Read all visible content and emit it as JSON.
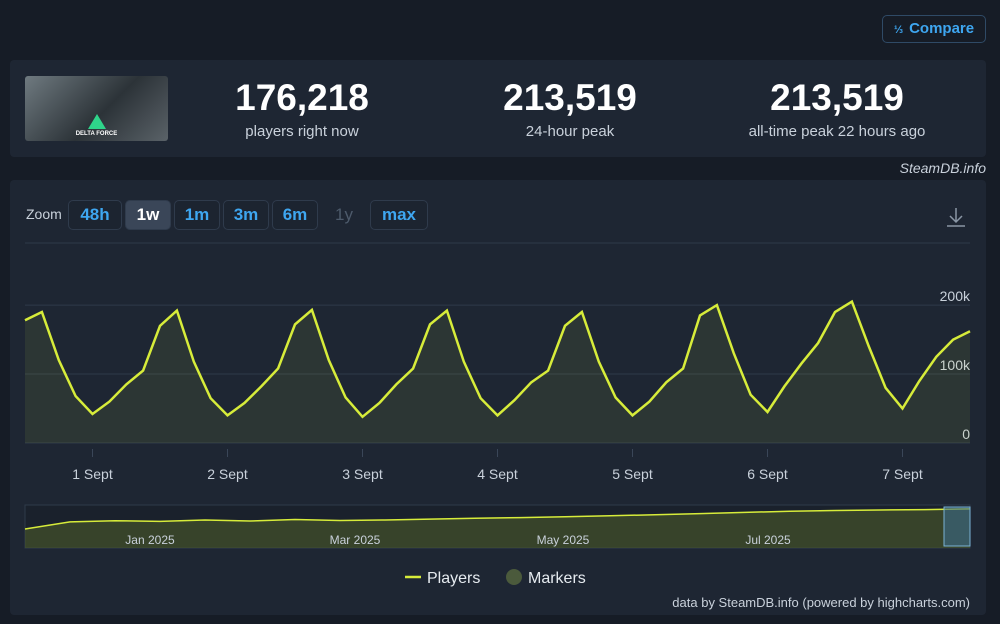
{
  "compare_button": "Compare",
  "game_image_text": "DELTA FORCE",
  "stats": [
    {
      "value": "176,218",
      "label": "players right now"
    },
    {
      "value": "213,519",
      "label": "24-hour peak"
    },
    {
      "value": "213,519",
      "label": "all-time peak 22 hours ago"
    }
  ],
  "source": "SteamDB.info",
  "zoom": {
    "label": "Zoom",
    "buttons": [
      "48h",
      "1w",
      "1m",
      "3m",
      "6m",
      "1y",
      "max"
    ],
    "active": 1,
    "disabled": [
      5
    ]
  },
  "chart_data": {
    "type": "line",
    "x": [
      0.5,
      0.625,
      0.75,
      0.875,
      1,
      1.125,
      1.25,
      1.375,
      1.5,
      1.625,
      1.75,
      1.875,
      2,
      2.125,
      2.25,
      2.375,
      2.5,
      2.625,
      2.75,
      2.875,
      3,
      3.125,
      3.25,
      3.375,
      3.5,
      3.625,
      3.75,
      3.875,
      4,
      4.125,
      4.25,
      4.375,
      4.5,
      4.625,
      4.75,
      4.875,
      5,
      5.125,
      5.25,
      5.375,
      5.5,
      5.625,
      5.75,
      5.875,
      6,
      6.125,
      6.25,
      6.375,
      6.5,
      6.625,
      6.75,
      6.875,
      7,
      7.125,
      7.25,
      7.375,
      7.5
    ],
    "series": [
      {
        "name": "Players",
        "color": "#d7ec3a",
        "values": [
          178000,
          190000,
          120000,
          68000,
          42000,
          60000,
          85000,
          105000,
          170000,
          192000,
          118000,
          65000,
          40000,
          58000,
          82000,
          108000,
          172000,
          193000,
          120000,
          66000,
          38000,
          58000,
          85000,
          108000,
          172000,
          192000,
          118000,
          65000,
          40000,
          62000,
          88000,
          105000,
          170000,
          190000,
          118000,
          66000,
          40000,
          60000,
          88000,
          108000,
          185000,
          200000,
          130000,
          70000,
          45000,
          82000,
          115000,
          145000,
          190000,
          205000,
          140000,
          80000,
          50000,
          90000,
          125000,
          150000,
          162000
        ]
      }
    ],
    "xlim": [
      0.5,
      7.5
    ],
    "xticks": [
      {
        "value": 1,
        "label": "1 Sept"
      },
      {
        "value": 2,
        "label": "2 Sept"
      },
      {
        "value": 3,
        "label": "3 Sept"
      },
      {
        "value": 4,
        "label": "4 Sept"
      },
      {
        "value": 5,
        "label": "5 Sept"
      },
      {
        "value": 6,
        "label": "6 Sept"
      },
      {
        "value": 7,
        "label": "7 Sept"
      }
    ],
    "ylim": [
      0,
      290000
    ],
    "yticks": [
      0,
      {
        "value": 100000,
        "label": "100k"
      },
      {
        "value": 200000,
        "label": "200k"
      }
    ],
    "grid": true,
    "markers_legend": {
      "name": "Markers",
      "color": "#4b5a3c"
    }
  },
  "navigator": {
    "labels": [
      "Jan 2025",
      "Mar 2025",
      "May 2025",
      "Jul 2025"
    ],
    "values": [
      80000,
      110000,
      115000,
      112000,
      118000,
      114000,
      120000,
      116000,
      118000,
      122000,
      125000,
      128000,
      132000,
      136000,
      140000,
      145000,
      150000,
      155000,
      158000,
      160000,
      162000,
      165000
    ],
    "ylim": [
      0,
      290000
    ]
  },
  "credits": "data by SteamDB.info (powered by highcharts.com)"
}
